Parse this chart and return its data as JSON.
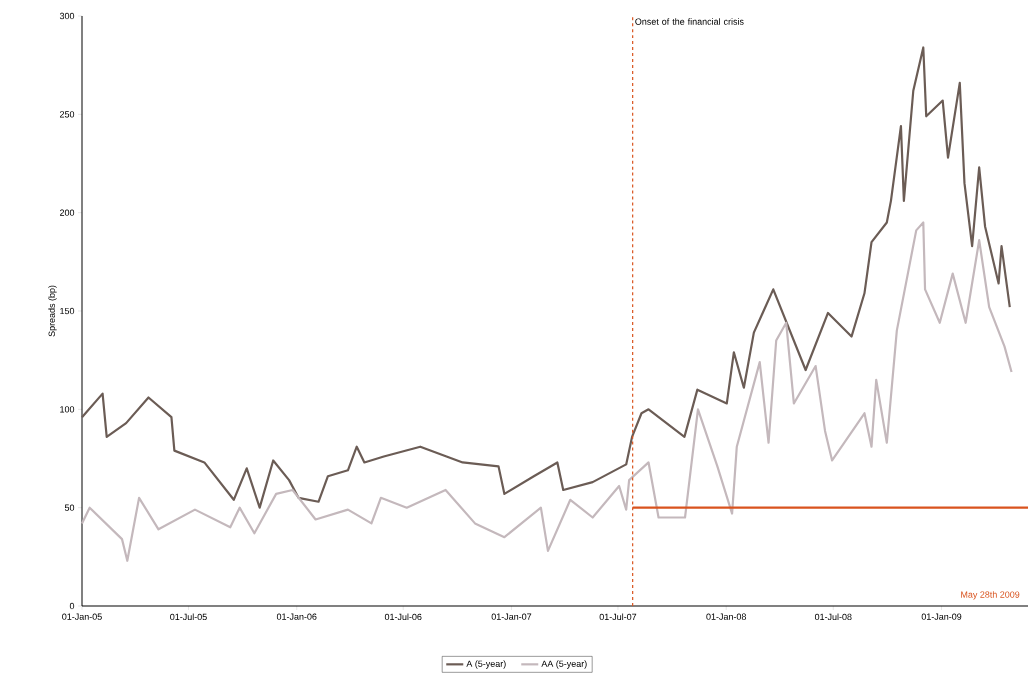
{
  "chart_data": {
    "type": "line",
    "ylabel": "Spreads (bp)",
    "xlim": [
      "2005-01-01",
      "2009-05-28"
    ],
    "ylim": [
      0,
      300
    ],
    "xticks": [
      {
        "value": "2005-01-01",
        "label": "01-Jan-05"
      },
      {
        "value": "2005-07-01",
        "label": "01-Jul-05"
      },
      {
        "value": "2006-01-01",
        "label": "01-Jan-06"
      },
      {
        "value": "2006-07-01",
        "label": "01-Jul-06"
      },
      {
        "value": "2007-01-01",
        "label": "01-Jan-07"
      },
      {
        "value": "2007-07-01",
        "label": "01-Jul-07"
      },
      {
        "value": "2008-01-01",
        "label": "01-Jan-08"
      },
      {
        "value": "2008-07-01",
        "label": "01-Jul-08"
      },
      {
        "value": "2009-01-01",
        "label": "01-Jan-09"
      }
    ],
    "yticks": [
      0,
      50,
      100,
      150,
      200,
      250,
      300
    ],
    "legend": "bottom",
    "grid": false,
    "marker": "none",
    "line_style": "solid",
    "ref_lines": [
      {
        "axis": "x",
        "value": "2007-07-26",
        "label": "Onset of the financial crisis",
        "color": "#d9531e",
        "line_style": "dashed"
      }
    ],
    "annotations": [
      "May 28th 2009"
    ],
    "series": [
      {
        "name": "A (5-year)",
        "color": "#6b5c55",
        "x": [
          "2005-01-01",
          "2005-02-05",
          "2005-02-12",
          "2005-03-17",
          "2005-04-24",
          "2005-06-02",
          "2005-06-07",
          "2005-07-28",
          "2005-09-16",
          "2005-10-08",
          "2005-10-30",
          "2005-11-22",
          "2005-12-19",
          "2006-01-04",
          "2006-02-07",
          "2006-02-23",
          "2006-03-29",
          "2006-04-13",
          "2006-04-26",
          "2006-05-29",
          "2006-07-30",
          "2006-10-10",
          "2006-12-10",
          "2006-12-20",
          "2007-02-08",
          "2007-03-20",
          "2007-03-30",
          "2007-05-19",
          "2007-07-15",
          "2007-07-25",
          "2007-08-10",
          "2007-08-22",
          "2007-10-22",
          "2007-11-13",
          "2008-01-02",
          "2008-01-14",
          "2008-01-31",
          "2008-02-17",
          "2008-03-21",
          "2008-05-15",
          "2008-06-22",
          "2008-08-01",
          "2008-08-23",
          "2008-09-04",
          "2008-09-30",
          "2008-10-07",
          "2008-10-24",
          "2008-10-29",
          "2008-11-14",
          "2008-12-01",
          "2008-12-06",
          "2009-01-03",
          "2009-01-12",
          "2009-02-01",
          "2009-02-09",
          "2009-02-22",
          "2009-03-06",
          "2009-03-16",
          "2009-04-08",
          "2009-04-13",
          "2009-04-27"
        ],
        "values": [
          96,
          108,
          86,
          93,
          106,
          96,
          79,
          73,
          54,
          70,
          50,
          74,
          64,
          55,
          53,
          66,
          69,
          81,
          73,
          76,
          81,
          73,
          71,
          57,
          66,
          73,
          59,
          63,
          72,
          86,
          98,
          100,
          86,
          110,
          103,
          129,
          111,
          139,
          161,
          120,
          149,
          137,
          159,
          185,
          195,
          206,
          244,
          206,
          262,
          284,
          249,
          257,
          228,
          266,
          215,
          183,
          223,
          193,
          164,
          183,
          152
        ]
      },
      {
        "name": "AA (5-year)",
        "color": "#c4b8bc",
        "x": [
          "2005-01-01",
          "2005-01-14",
          "2005-03-10",
          "2005-03-19",
          "2005-04-08",
          "2005-05-11",
          "2005-07-12",
          "2005-09-10",
          "2005-09-26",
          "2005-10-21",
          "2005-11-27",
          "2005-12-25",
          "2006-02-02",
          "2006-03-29",
          "2006-05-08",
          "2006-05-24",
          "2006-07-07",
          "2006-09-11",
          "2006-10-31",
          "2006-12-20",
          "2007-02-20",
          "2007-03-04",
          "2007-04-11",
          "2007-05-19",
          "2007-07-03",
          "2007-07-15",
          "2007-07-20",
          "2007-08-22",
          "2007-09-08",
          "2007-10-23",
          "2007-11-14",
          "2007-12-17",
          "2008-01-11",
          "2008-01-19",
          "2008-02-27",
          "2008-03-13",
          "2008-03-26",
          "2008-04-12",
          "2008-04-25",
          "2008-06-01",
          "2008-06-17",
          "2008-06-29",
          "2008-08-23",
          "2008-09-04",
          "2008-09-12",
          "2008-09-30",
          "2008-10-17",
          "2008-11-19",
          "2008-12-01",
          "2008-12-04",
          "2008-12-29",
          "2009-01-20",
          "2009-02-11",
          "2009-03-06",
          "2009-03-23",
          "2009-04-18",
          "2009-04-30"
        ],
        "values": [
          42,
          50,
          34,
          23,
          55,
          39,
          49,
          40,
          50,
          37,
          57,
          59,
          44,
          49,
          42,
          55,
          50,
          59,
          42,
          35,
          50,
          28,
          54,
          45,
          61,
          49,
          64,
          73,
          45,
          45,
          100,
          71,
          47,
          81,
          124,
          83,
          135,
          144,
          103,
          122,
          89,
          74,
          98,
          81,
          115,
          83,
          140,
          191,
          195,
          161,
          144,
          169,
          144,
          186,
          152,
          132,
          119
        ]
      },
      {
        "type": "line",
        "color": "#d9531e",
        "x": [
          "2007-07-26",
          "2009-05-28"
        ],
        "values": [
          50,
          50
        ]
      }
    ]
  }
}
